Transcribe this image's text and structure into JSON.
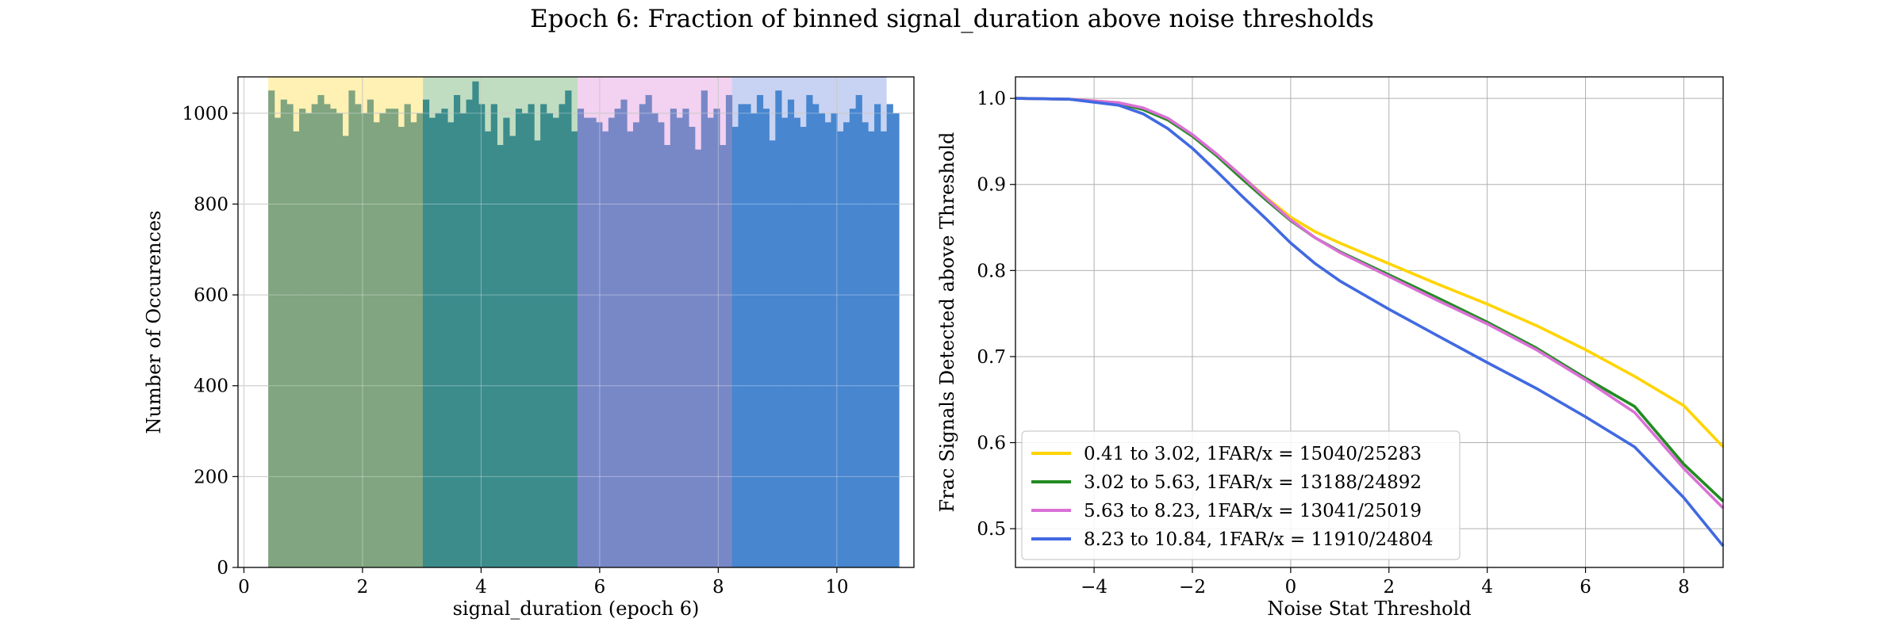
{
  "figure": {
    "title": "Epoch 6: Fraction of binned signal_duration above noise thresholds"
  },
  "chart_data": [
    {
      "type": "bar",
      "subtype": "histogram",
      "xlabel": "signal_duration (epoch 6)",
      "ylabel": "Number of Occurences",
      "xlim": [
        -0.1,
        11.3
      ],
      "ylim": [
        0,
        1080
      ],
      "xticks": [
        0,
        2,
        4,
        6,
        8,
        10
      ],
      "yticks": [
        0,
        200,
        400,
        600,
        800,
        1000
      ],
      "grid": true,
      "bin_start": 0.41,
      "bin_width": 0.1043,
      "counts": [
        1050,
        990,
        1030,
        1020,
        960,
        1010,
        1000,
        1020,
        1040,
        1020,
        1010,
        1000,
        950,
        1050,
        1020,
        1000,
        1030,
        980,
        1000,
        1010,
        1010,
        970,
        1020,
        980,
        1000,
        1030,
        990,
        1000,
        1010,
        980,
        1040,
        1000,
        1030,
        1070,
        1020,
        960,
        1020,
        930,
        990,
        950,
        1010,
        1000,
        1020,
        940,
        1020,
        1000,
        990,
        1020,
        1050,
        960,
        1010,
        990,
        990,
        980,
        960,
        990,
        1010,
        1030,
        960,
        980,
        1020,
        1040,
        1000,
        980,
        930,
        1010,
        990,
        1010,
        970,
        920,
        1050,
        990,
        1010,
        930,
        1040,
        970,
        1020,
        1020,
        1000,
        1040,
        1010,
        940,
        1050,
        990,
        1030,
        990,
        970,
        1040,
        1020,
        1000,
        980,
        1000,
        960,
        980,
        1010,
        1040,
        980,
        960,
        1020,
        960,
        1020,
        1000
      ],
      "bins": [
        {
          "range": [
            0.41,
            3.02
          ],
          "shade": "#fff1b3",
          "bar_color": "#80a580"
        },
        {
          "range": [
            3.02,
            5.63
          ],
          "shade": "#c1ddc1",
          "bar_color": "#3c8c8c"
        },
        {
          "range": [
            5.63,
            8.23
          ],
          "shade": "#f3d1f1",
          "bar_color": "#7888c6"
        },
        {
          "range": [
            8.23,
            10.84
          ],
          "shade": "#c8d3f3",
          "bar_color": "#4886cf"
        }
      ]
    },
    {
      "type": "line",
      "xlabel": "Noise Stat Threshold",
      "ylabel": "Frac Signals Detected above Threshold",
      "xlim": [
        -5.6,
        8.8
      ],
      "ylim": [
        0.455,
        1.025
      ],
      "xticks": [
        -4,
        -2,
        0,
        2,
        4,
        6,
        8
      ],
      "yticks": [
        0.5,
        0.6,
        0.7,
        0.8,
        0.9,
        1.0
      ],
      "grid": true,
      "legend_position": "lower-left",
      "series": [
        {
          "name": "0.41 to 3.02, 1FAR/x = 15040/25283",
          "color": "#ffd400",
          "x": [
            -5.6,
            -4.5,
            -3.5,
            -3.0,
            -2.5,
            -2.0,
            -1.5,
            -1.0,
            -0.5,
            0,
            0.5,
            1,
            2,
            3,
            4,
            5,
            6,
            7,
            8,
            8.8
          ],
          "y": [
            1.0,
            0.999,
            0.995,
            0.988,
            0.975,
            0.957,
            0.935,
            0.91,
            0.885,
            0.862,
            0.845,
            0.832,
            0.808,
            0.784,
            0.761,
            0.736,
            0.708,
            0.677,
            0.643,
            0.595
          ]
        },
        {
          "name": "3.02 to 5.63, 1FAR/x = 13188/24892",
          "color": "#228b22",
          "x": [
            -5.6,
            -4.5,
            -3.5,
            -3.0,
            -2.5,
            -2.0,
            -1.5,
            -1.0,
            -0.5,
            0,
            0.5,
            1,
            2,
            3,
            4,
            5,
            6,
            7,
            8,
            8.8
          ],
          "y": [
            1.0,
            0.999,
            0.994,
            0.987,
            0.975,
            0.956,
            0.933,
            0.907,
            0.882,
            0.858,
            0.838,
            0.822,
            0.795,
            0.768,
            0.74,
            0.71,
            0.675,
            0.642,
            0.575,
            0.532
          ]
        },
        {
          "name": "5.63 to 8.23, 1FAR/x = 13041/25019",
          "color": "#da70d6",
          "x": [
            -5.6,
            -4.5,
            -3.5,
            -3.0,
            -2.5,
            -2.0,
            -1.5,
            -1.0,
            -0.5,
            0,
            0.5,
            1,
            2,
            3,
            4,
            5,
            6,
            7,
            8,
            8.8
          ],
          "y": [
            1.0,
            0.999,
            0.995,
            0.989,
            0.977,
            0.958,
            0.935,
            0.91,
            0.884,
            0.859,
            0.838,
            0.821,
            0.793,
            0.765,
            0.738,
            0.708,
            0.673,
            0.635,
            0.57,
            0.524
          ]
        },
        {
          "name": "8.23 to 10.84, 1FAR/x = 11910/24804",
          "color": "#4169e1",
          "x": [
            -5.6,
            -4.5,
            -3.5,
            -3.0,
            -2.5,
            -2.0,
            -1.5,
            -1.0,
            -0.5,
            0,
            0.5,
            1,
            2,
            3,
            4,
            5,
            6,
            7,
            8,
            8.8
          ],
          "y": [
            1.0,
            0.999,
            0.992,
            0.982,
            0.965,
            0.942,
            0.915,
            0.887,
            0.86,
            0.832,
            0.808,
            0.788,
            0.755,
            0.724,
            0.693,
            0.663,
            0.63,
            0.595,
            0.536,
            0.48
          ]
        }
      ]
    }
  ]
}
